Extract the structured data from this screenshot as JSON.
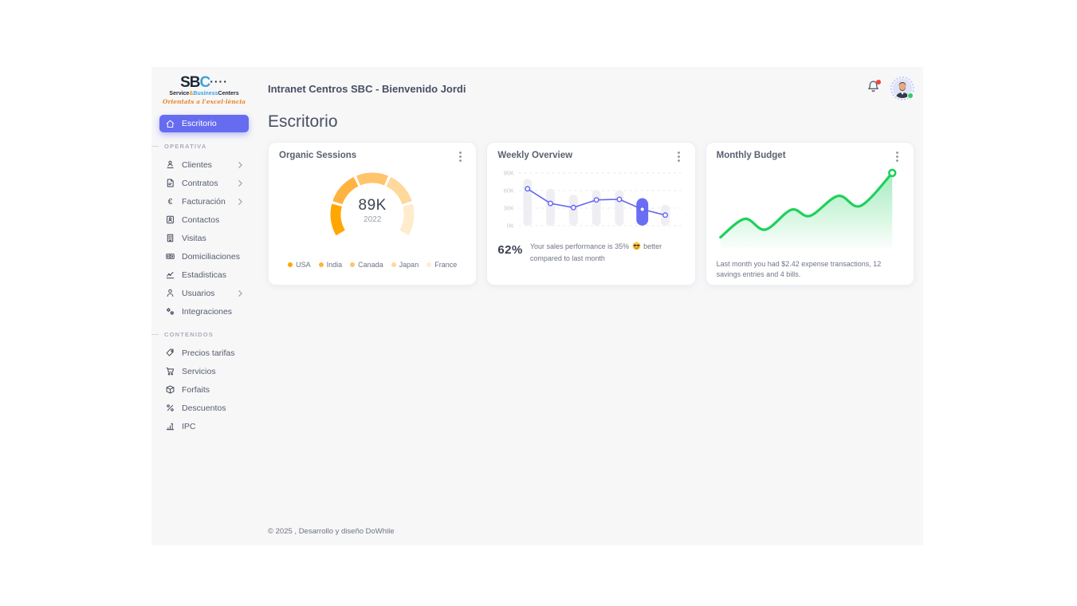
{
  "header": {
    "title": "Intranet Centros SBC - Bienvenido Jordi"
  },
  "page": {
    "title": "Escritorio"
  },
  "sidebar": {
    "logo": {
      "text_dark": "SB",
      "text_blue": "C",
      "dots": "····",
      "subtitle": {
        "p1": "Service",
        "amp": "&",
        "p2": "Business",
        "p3": "Centers"
      },
      "tagline": "Orientats a l'excel·lència"
    },
    "sections": [
      {
        "label": null,
        "items": [
          {
            "label": "Escritorio",
            "icon": "home",
            "active": true
          }
        ]
      },
      {
        "label": "OPERATIVA",
        "items": [
          {
            "label": "Clientes",
            "icon": "clientes",
            "chevron": true
          },
          {
            "label": "Contratos",
            "icon": "contratos",
            "chevron": true
          },
          {
            "label": "Facturación",
            "icon": "facturacion",
            "chevron": true
          },
          {
            "label": "Contactos",
            "icon": "contactos"
          },
          {
            "label": "Visitas",
            "icon": "visitas"
          },
          {
            "label": "Domiciliaciones",
            "icon": "domiciliaciones"
          },
          {
            "label": "Estadisticas",
            "icon": "estadisticas"
          },
          {
            "label": "Usuarios",
            "icon": "usuarios",
            "chevron": true
          },
          {
            "label": "Integraciones",
            "icon": "integraciones"
          }
        ]
      },
      {
        "label": "CONTENIDOS",
        "items": [
          {
            "label": "Precios tarifas",
            "icon": "precios"
          },
          {
            "label": "Servicios",
            "icon": "servicios"
          },
          {
            "label": "Forfaits",
            "icon": "forfaits"
          },
          {
            "label": "Descuentos",
            "icon": "descuentos"
          },
          {
            "label": "IPC",
            "icon": "ipc"
          }
        ]
      }
    ]
  },
  "cards": {
    "organic_sessions": {
      "title": "Organic Sessions",
      "center_value": "89K",
      "center_label": "2022",
      "legend": [
        {
          "label": "USA",
          "color": "#ffa600"
        },
        {
          "label": "India",
          "color": "#ffb340"
        },
        {
          "label": "Canada",
          "color": "#ffc46c"
        },
        {
          "label": "Japan",
          "color": "#ffd89b"
        },
        {
          "label": "France",
          "color": "#ffeccd"
        }
      ]
    },
    "weekly_overview": {
      "title": "Weekly Overview",
      "chart_data": {
        "type": "bar+line",
        "y_ticks": [
          "90K",
          "60K",
          "30K",
          "0K"
        ],
        "y_max": 90,
        "bars": [
          80,
          63,
          53,
          61,
          61,
          47,
          36
        ],
        "highlight_index": 5,
        "line": [
          63,
          38,
          31,
          44,
          45,
          28,
          18
        ],
        "bar_color": "#efeff3",
        "highlight_color": "#6a6ef3",
        "line_color": "#6366f1"
      },
      "kpi": "62%",
      "desc_before": "Your sales performance is 35%",
      "desc_after": "better compared to last month"
    },
    "monthly_budget": {
      "title": "Monthly Budget",
      "description": "Last month you had $2.42 expense transactions, 12 savings entries and 4 bills.",
      "chart_data": {
        "type": "area",
        "line_color": "#1ed15c",
        "points_pct": [
          [
            2,
            14
          ],
          [
            15,
            38
          ],
          [
            26,
            24
          ],
          [
            40,
            50
          ],
          [
            50,
            42
          ],
          [
            65,
            68
          ],
          [
            77,
            55
          ],
          [
            94,
            98
          ]
        ]
      }
    }
  },
  "footer": {
    "copyright": "© 2025 , Desarrollo y diseño DoWhile"
  }
}
